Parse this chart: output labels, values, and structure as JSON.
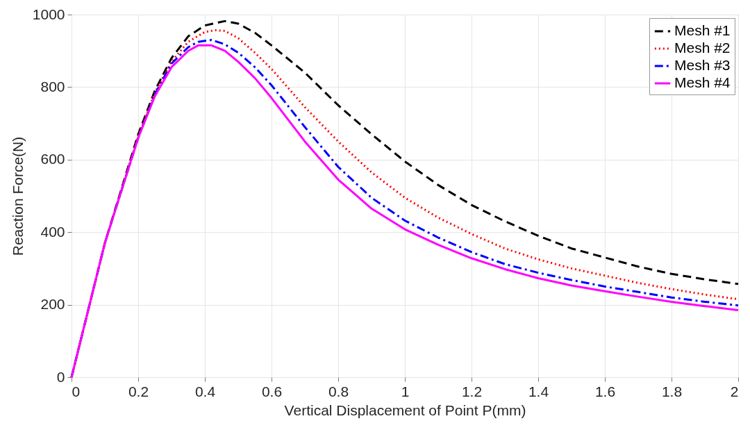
{
  "chart_data": {
    "type": "line",
    "xlabel": "Vertical Displacement of Point P(mm)",
    "ylabel": "Reaction Force(N)",
    "xlim": [
      0,
      2
    ],
    "ylim": [
      0,
      1000
    ],
    "xticks": [
      0,
      0.2,
      0.4,
      0.6,
      0.8,
      1,
      1.2,
      1.4,
      1.6,
      1.8,
      2
    ],
    "yticks": [
      0,
      200,
      400,
      600,
      800,
      1000
    ],
    "grid": true,
    "legend": "top right",
    "marker": "none",
    "series": [
      {
        "name": "Mesh #1",
        "color": "#000000",
        "line_style": "dashed",
        "x": [
          0,
          0.1,
          0.2,
          0.25,
          0.3,
          0.35,
          0.4,
          0.46,
          0.5,
          0.55,
          0.6,
          0.7,
          0.8,
          0.9,
          1,
          1.1,
          1.2,
          1.3,
          1.4,
          1.5,
          1.6,
          1.7,
          1.8,
          1.9,
          2
        ],
        "values": [
          0,
          370,
          670,
          790,
          880,
          940,
          970,
          982,
          975,
          950,
          915,
          840,
          750,
          670,
          595,
          530,
          475,
          430,
          390,
          355,
          330,
          305,
          285,
          270,
          257
        ]
      },
      {
        "name": "Mesh #2",
        "color": "#ff0000",
        "line_style": "dotted",
        "x": [
          0,
          0.1,
          0.2,
          0.25,
          0.3,
          0.35,
          0.4,
          0.43,
          0.46,
          0.5,
          0.55,
          0.6,
          0.7,
          0.8,
          0.9,
          1,
          1.1,
          1.2,
          1.3,
          1.4,
          1.5,
          1.6,
          1.7,
          1.8,
          1.9,
          2
        ],
        "values": [
          0,
          370,
          665,
          785,
          870,
          925,
          952,
          957,
          955,
          935,
          895,
          850,
          745,
          650,
          565,
          495,
          440,
          395,
          355,
          325,
          300,
          280,
          260,
          243,
          228,
          215
        ]
      },
      {
        "name": "Mesh #3",
        "color": "#0000ff",
        "line_style": "dashdot",
        "x": [
          0,
          0.1,
          0.2,
          0.25,
          0.3,
          0.35,
          0.38,
          0.42,
          0.46,
          0.5,
          0.55,
          0.6,
          0.7,
          0.8,
          0.9,
          1,
          1.1,
          1.2,
          1.3,
          1.4,
          1.5,
          1.6,
          1.7,
          1.8,
          1.9,
          2
        ],
        "values": [
          0,
          370,
          660,
          780,
          865,
          910,
          925,
          930,
          918,
          895,
          855,
          805,
          690,
          580,
          495,
          432,
          385,
          345,
          312,
          288,
          268,
          250,
          235,
          220,
          208,
          198
        ]
      },
      {
        "name": "Mesh #4",
        "color": "#ff00ff",
        "line_style": "solid",
        "x": [
          0,
          0.1,
          0.2,
          0.25,
          0.3,
          0.35,
          0.38,
          0.42,
          0.46,
          0.5,
          0.55,
          0.6,
          0.7,
          0.8,
          0.9,
          1,
          1.1,
          1.2,
          1.3,
          1.4,
          1.5,
          1.6,
          1.7,
          1.8,
          1.9,
          2
        ],
        "values": [
          0,
          370,
          660,
          775,
          855,
          900,
          915,
          915,
          900,
          870,
          825,
          770,
          650,
          545,
          465,
          408,
          365,
          328,
          298,
          273,
          253,
          237,
          222,
          208,
          196,
          185
        ]
      }
    ]
  }
}
